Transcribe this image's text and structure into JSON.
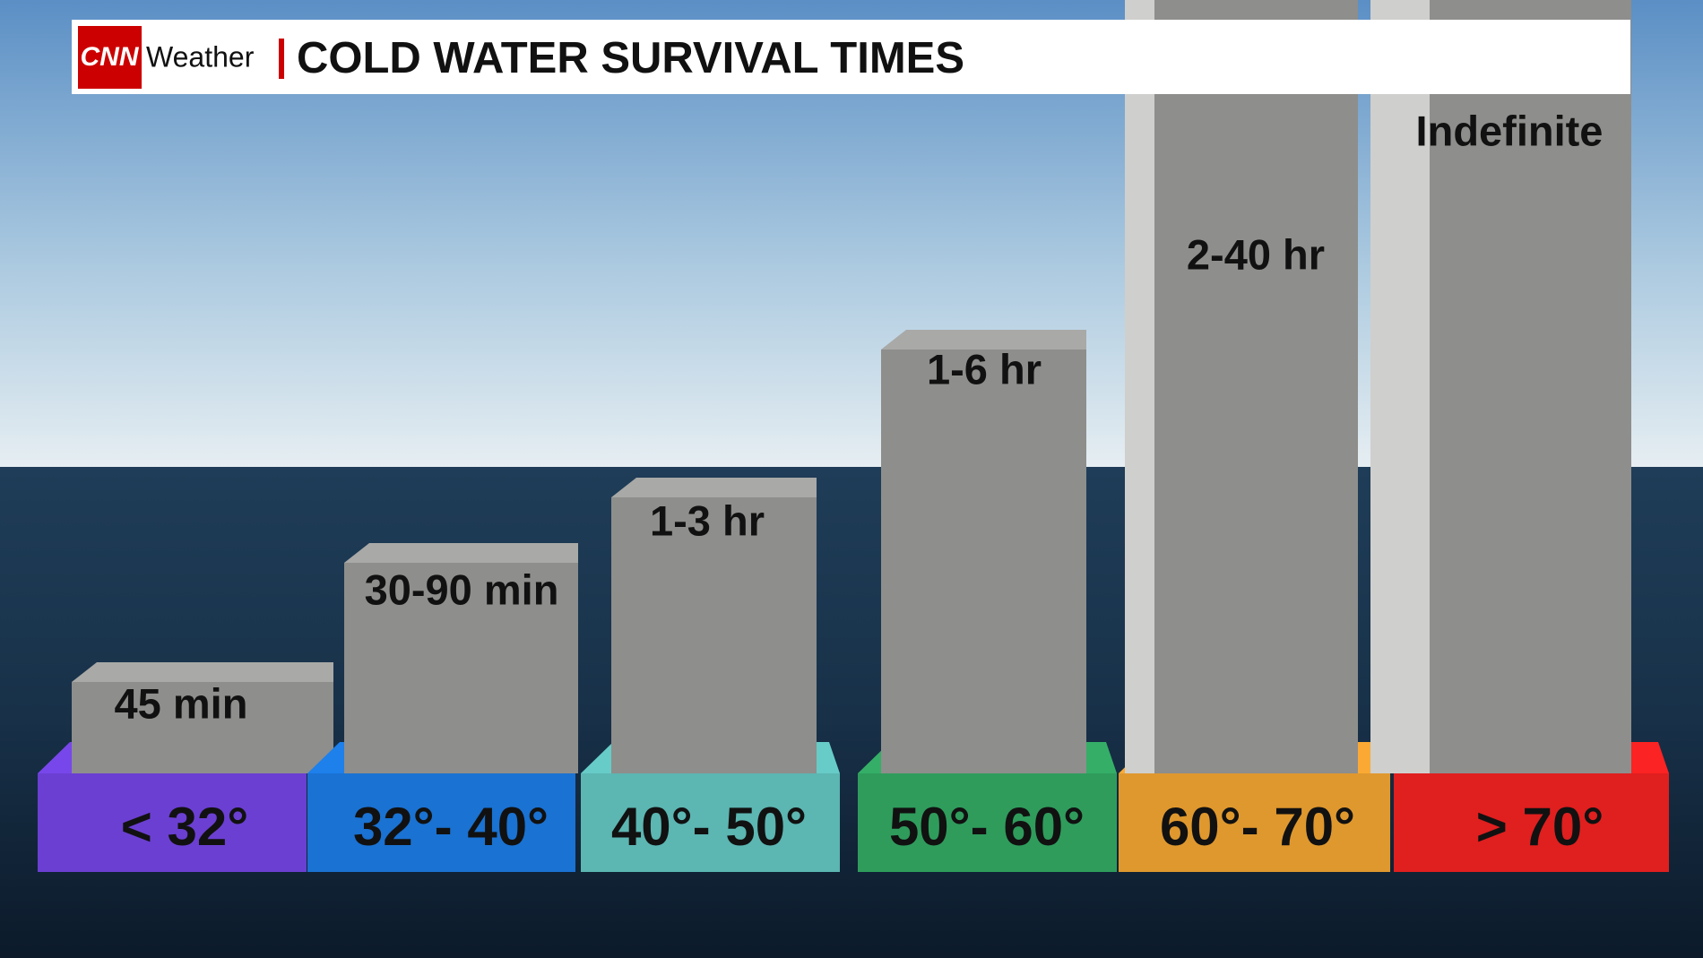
{
  "header": {
    "logo": "CNN",
    "brand": "Weather",
    "title": "COLD WATER SURVIVAL TIMES"
  },
  "bars": [
    {
      "survival_time": "45 min",
      "water_temperature": "< 32°",
      "color": "#6b3fd2"
    },
    {
      "survival_time": "30-90 min",
      "water_temperature": "32°- 40°",
      "color": "#1a72d2"
    },
    {
      "survival_time": "1-3 hr",
      "water_temperature": "40°- 50°",
      "color": "#5cb6b2"
    },
    {
      "survival_time": "1-6 hr",
      "water_temperature": "50°- 60°",
      "color": "#2f9c5c"
    },
    {
      "survival_time": "2-40 hr",
      "water_temperature": "60°- 70°",
      "color": "#df982e"
    },
    {
      "survival_time": "Indefinite",
      "water_temperature": "> 70°",
      "color": "#e01f1f"
    }
  ]
}
